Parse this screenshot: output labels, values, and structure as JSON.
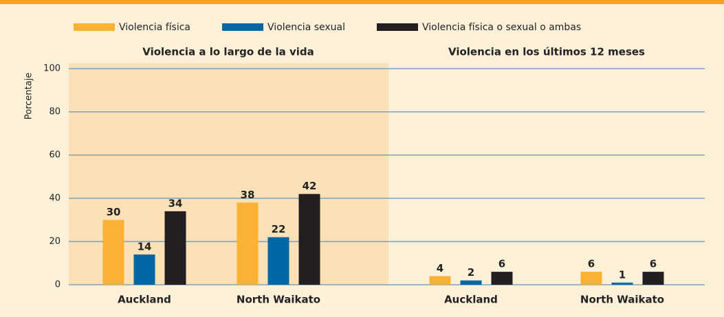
{
  "chart_data": {
    "type": "bar",
    "panel_titles": [
      "Violencia a lo largo de la vida",
      "Violencia en los últimos 12 meses"
    ],
    "categories": [
      "Auckland",
      "North Waikato",
      "Auckland",
      "North Waikato"
    ],
    "series": [
      {
        "name": "Violencia física",
        "color": "#f9b233",
        "values": [
          30,
          38,
          4,
          6
        ]
      },
      {
        "name": "Violencia sexual",
        "color": "#0067a5",
        "values": [
          14,
          22,
          2,
          1
        ]
      },
      {
        "name": "Violencia física o sexual o ambas",
        "color": "#231f20",
        "values": [
          34,
          42,
          6,
          6
        ]
      }
    ],
    "ylabel": "Porcentaje",
    "ylim": [
      0,
      100
    ],
    "yticks": [
      0,
      20,
      40,
      60,
      80,
      100
    ],
    "grid": true
  }
}
